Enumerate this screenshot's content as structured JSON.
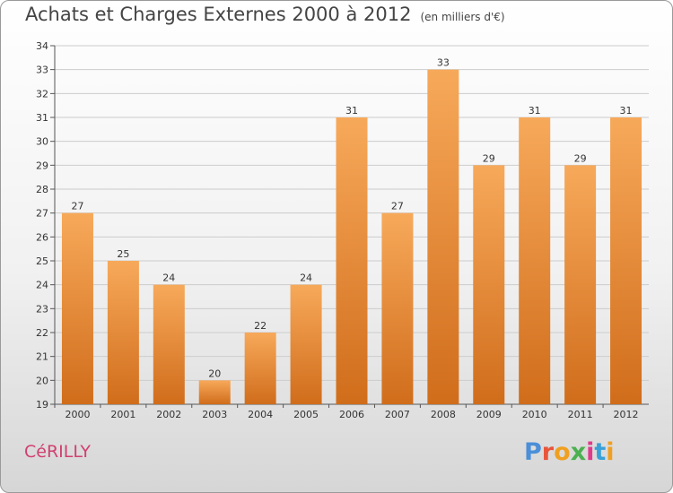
{
  "header": {
    "title": "Achats et Charges Externes 2000 à 2012",
    "unit": "(en milliers d'€)"
  },
  "commune": "CéRILLY",
  "brand": {
    "letters": [
      "P",
      "r",
      "o",
      "x",
      "i",
      "t",
      "i"
    ],
    "colors": [
      "#4a8fd8",
      "#e8553b",
      "#f0a020",
      "#4cb050",
      "#e03a8a",
      "#3aa0d8",
      "#f0a020"
    ]
  },
  "colors": {
    "bar_light": "#f7a95a",
    "bar_dark": "#d06d1b",
    "grid": "#cccccc"
  },
  "chart_data": {
    "type": "bar",
    "categories": [
      "2000",
      "2001",
      "2002",
      "2003",
      "2004",
      "2005",
      "2006",
      "2007",
      "2008",
      "2009",
      "2010",
      "2011",
      "2012"
    ],
    "values": [
      27,
      25,
      24,
      20,
      22,
      24,
      31,
      27,
      33,
      29,
      31,
      29,
      31
    ],
    "title": "Achats et Charges Externes 2000 à 2012",
    "ylim": [
      19,
      34
    ],
    "yticks": [
      19,
      20,
      21,
      22,
      23,
      24,
      25,
      26,
      27,
      28,
      29,
      30,
      31,
      32,
      33,
      34
    ],
    "grid": true,
    "data_labels": true
  }
}
